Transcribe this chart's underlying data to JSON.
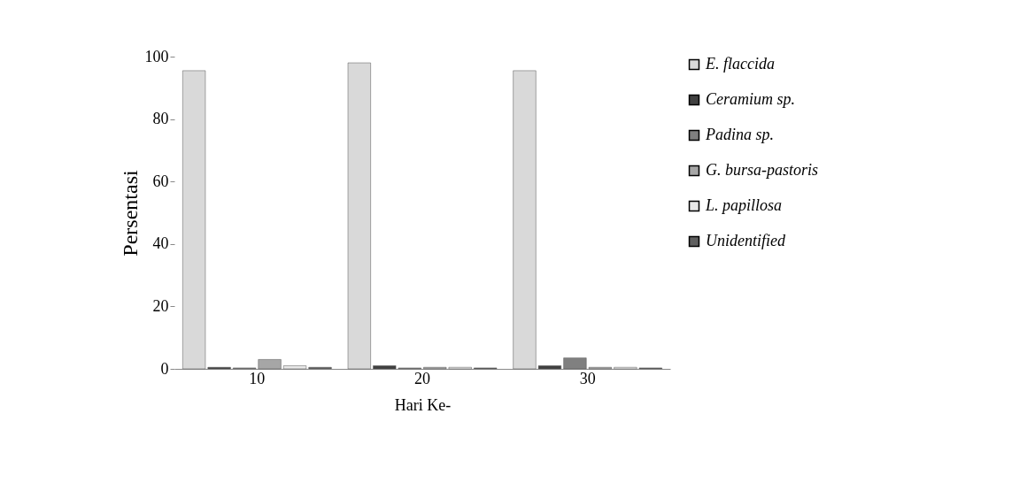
{
  "chart_data": {
    "type": "bar",
    "xlabel": "Hari Ke-",
    "ylabel": "Persentasi",
    "categories": [
      "10",
      "20",
      "30"
    ],
    "series": [
      {
        "name": "E. flaccida",
        "color": "#d9d9d9",
        "values": [
          95.5,
          98,
          95.5
        ]
      },
      {
        "name": "Ceramium sp.",
        "color": "#404040",
        "values": [
          0.5,
          1,
          1
        ]
      },
      {
        "name": "Padina sp.",
        "color": "#808080",
        "values": [
          0.3,
          0.3,
          3.5
        ]
      },
      {
        "name": "G. bursa-pastoris",
        "color": "#a6a6a6",
        "values": [
          3,
          0.5,
          0.5
        ]
      },
      {
        "name": "L. papillosa",
        "color": "#e8e8e8",
        "values": [
          1,
          0.5,
          0.5
        ]
      },
      {
        "name": "Unidentified",
        "color": "#606060",
        "values": [
          0.5,
          0.3,
          0.3
        ]
      }
    ],
    "ylim": [
      0,
      100
    ],
    "yticks": [
      0,
      20,
      40,
      60,
      80,
      100
    ],
    "grid": false,
    "legend": "right"
  }
}
